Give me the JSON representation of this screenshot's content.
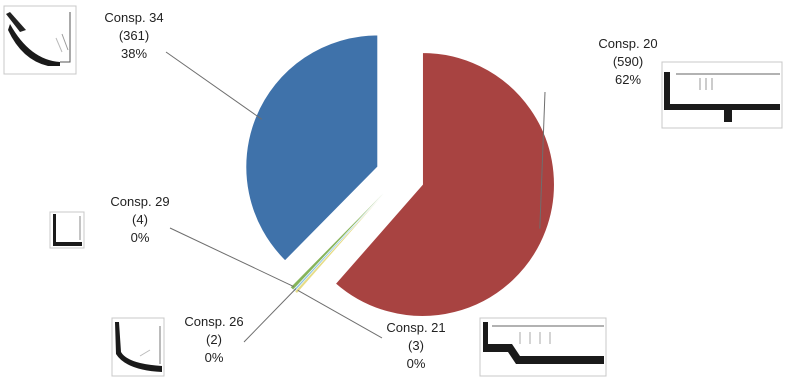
{
  "chart_data": {
    "type": "pie",
    "title": "",
    "slices": [
      {
        "name": "Consp. 20",
        "count": "(590)",
        "percent": "62%",
        "value": 590,
        "color": "#a84341"
      },
      {
        "name": "Consp. 21",
        "count": "(3)",
        "percent": "0%",
        "value": 3,
        "color": "#e6dc86"
      },
      {
        "name": "Consp. 26",
        "count": "(2)",
        "percent": "0%",
        "value": 2,
        "color": "#8bc3e2"
      },
      {
        "name": "Consp. 29",
        "count": "(4)",
        "percent": "0%",
        "value": 4,
        "color": "#86b45a"
      },
      {
        "name": "Consp. 34",
        "count": "(361)",
        "percent": "38%",
        "value": 361,
        "color": "#3f72aa"
      }
    ]
  }
}
